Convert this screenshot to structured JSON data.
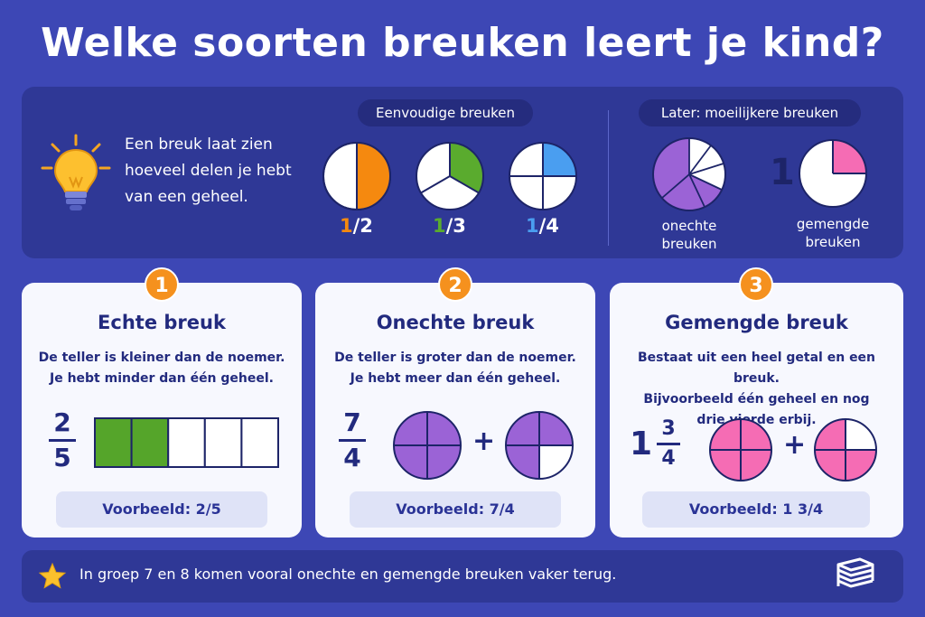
{
  "title": "Welke soorten breuken leert je kind?",
  "intro": {
    "text": "Een breuk laat zien hoeveel delen je hebt van een geheel.",
    "icon": "lightbulb-icon"
  },
  "simple": {
    "label": "Eenvoudige breuken",
    "items": [
      {
        "num": "1",
        "den": "/2",
        "color": "#f5890f"
      },
      {
        "num": "1",
        "den": "/3",
        "color": "#5aab2e"
      },
      {
        "num": "1",
        "den": "/4",
        "color": "#4a9ef0"
      }
    ]
  },
  "advanced": {
    "label": "Later: moeilijkere breuken",
    "improper_line1": "onechte",
    "improper_line2": "breuken",
    "mixed_whole": "1",
    "mixed_line1": "gemengde",
    "mixed_line2": "breuken"
  },
  "cards": [
    {
      "badge": "1",
      "title": "Echte breuk",
      "desc1": "De teller is kleiner dan de noemer.",
      "desc2": "Je hebt minder dan één geheel.",
      "num": "2",
      "den": "5",
      "example": "Voorbeeld: 2/5",
      "filled": 2,
      "total": 5,
      "color": "#55a52a"
    },
    {
      "badge": "2",
      "title": "Onechte breuk",
      "desc1": "De teller is groter dan de noemer.",
      "desc2": "Je hebt meer dan één geheel.",
      "num": "7",
      "den": "4",
      "plus": "+",
      "example": "Voorbeeld: 7/4",
      "color": "#9b63d6"
    },
    {
      "badge": "3",
      "title": "Gemengde breuk",
      "desc1": "Bestaat uit een heel getal en een breuk.",
      "desc2": "Bijvoorbeeld één geheel en nog",
      "desc3": "drie vierde erbij.",
      "whole": "1",
      "num": "3",
      "den": "4",
      "plus": "+",
      "example": "Voorbeeld: 1 3/4",
      "color": "#f56cb4"
    }
  ],
  "footer": {
    "text": "In groep 7 en 8 komen vooral onechte en gemengde breuken vaker terug.",
    "star_icon": "star-icon",
    "logo_icon": "book-stack-icon"
  }
}
